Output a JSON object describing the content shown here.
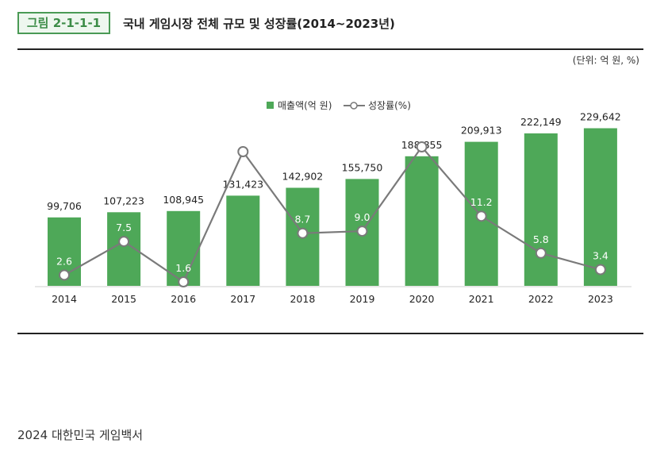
{
  "figure_label": "그림 2-1-1-1",
  "figure_title": "국내 게임시장 전체 규모 및 성장률(2014~2023년)",
  "unit_note": "(단위: 억 원, %)",
  "footer": "2024 대한민국 게임백서",
  "colors": {
    "bar": "#4ea858",
    "line": "#7a7a7a",
    "accent": "#4a9a55"
  },
  "chart_data": {
    "type": "bar",
    "categories": [
      "2014",
      "2015",
      "2016",
      "2017",
      "2018",
      "2019",
      "2020",
      "2021",
      "2022",
      "2023"
    ],
    "series": [
      {
        "name": "매출액(억 원)",
        "type": "bar",
        "values": [
          99706,
          107223,
          108945,
          131423,
          142902,
          155750,
          188855,
          209913,
          222149,
          229642
        ],
        "labels": [
          "99,706",
          "107,223",
          "108,945",
          "131,423",
          "142,902",
          "155,750",
          "188,855",
          "209,913",
          "222,149",
          "229,642"
        ]
      },
      {
        "name": "성장률(%)",
        "type": "line",
        "values": [
          2.6,
          7.5,
          1.6,
          20.6,
          8.7,
          9.0,
          21.3,
          11.2,
          5.8,
          3.4
        ],
        "labels": [
          "2.6",
          "7.5",
          "1.6",
          "20.6",
          "8.7",
          "9.0",
          "21.3",
          "11.2",
          "5.8",
          "3.4"
        ]
      }
    ],
    "ylim_bar": [
      0,
      250000
    ],
    "ylim_line": [
      0,
      22
    ],
    "legend_position": "top-center",
    "grid": false
  }
}
